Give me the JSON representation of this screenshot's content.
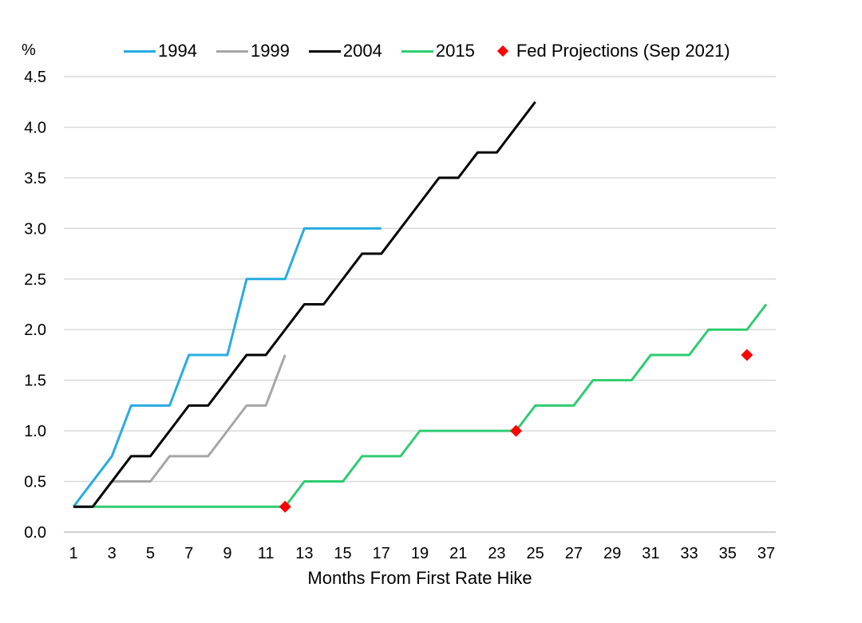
{
  "chart_data": {
    "type": "line",
    "ylabel": "%",
    "xlabel": "Months From First Rate Hike",
    "xlim": [
      1,
      37
    ],
    "ylim": [
      0,
      4.5
    ],
    "x_ticks": [
      1,
      3,
      5,
      7,
      9,
      11,
      13,
      15,
      17,
      19,
      21,
      23,
      25,
      27,
      29,
      31,
      33,
      35,
      37
    ],
    "y_ticks": [
      "0.0",
      "0.5",
      "1.0",
      "1.5",
      "2.0",
      "2.5",
      "3.0",
      "3.5",
      "4.0",
      "4.5"
    ],
    "grid": "horizontal",
    "legend_position": "top",
    "series": [
      {
        "name": "1994",
        "color": "#29abe2",
        "style": "line",
        "x": [
          1,
          2,
          3,
          4,
          5,
          6,
          7,
          8,
          9,
          10,
          11,
          12,
          13,
          14,
          15,
          16,
          17
        ],
        "y": [
          0.25,
          0.5,
          0.75,
          1.25,
          1.25,
          1.25,
          1.75,
          1.75,
          1.75,
          2.5,
          2.5,
          2.5,
          3.0,
          3.0,
          3.0,
          3.0,
          3.0
        ]
      },
      {
        "name": "1999",
        "color": "#a6a6a6",
        "style": "line",
        "x": [
          1,
          2,
          3,
          4,
          5,
          6,
          7,
          8,
          9,
          10,
          11,
          12
        ],
        "y": [
          0.25,
          0.25,
          0.5,
          0.5,
          0.5,
          0.75,
          0.75,
          0.75,
          1.0,
          1.25,
          1.25,
          1.75
        ]
      },
      {
        "name": "2004",
        "color": "#000000",
        "style": "line",
        "x": [
          1,
          2,
          3,
          4,
          5,
          6,
          7,
          8,
          9,
          10,
          11,
          12,
          13,
          14,
          15,
          16,
          17,
          18,
          19,
          20,
          21,
          22,
          23,
          24,
          25
        ],
        "y": [
          0.25,
          0.25,
          0.5,
          0.75,
          0.75,
          1.0,
          1.25,
          1.25,
          1.5,
          1.75,
          1.75,
          2.0,
          2.25,
          2.25,
          2.5,
          2.75,
          2.75,
          3.0,
          3.25,
          3.5,
          3.5,
          3.75,
          3.75,
          4.0,
          4.25
        ]
      },
      {
        "name": "2015",
        "color": "#2ecc71",
        "style": "line",
        "x": [
          1,
          12,
          13,
          14,
          15,
          16,
          17,
          18,
          19,
          20,
          21,
          22,
          23,
          24,
          25,
          26,
          27,
          28,
          29,
          30,
          31,
          32,
          33,
          34,
          35,
          36,
          37
        ],
        "y": [
          0.25,
          0.25,
          0.5,
          0.5,
          0.5,
          0.75,
          0.75,
          0.75,
          1.0,
          1.0,
          1.0,
          1.0,
          1.0,
          1.0,
          1.25,
          1.25,
          1.25,
          1.5,
          1.5,
          1.5,
          1.75,
          1.75,
          1.75,
          2.0,
          2.0,
          2.0,
          2.25
        ]
      },
      {
        "name": "Fed Projections (Sep 2021)",
        "color": "#ff0000",
        "style": "marker",
        "x": [
          12,
          24,
          36
        ],
        "y": [
          0.25,
          1.0,
          1.75
        ]
      }
    ]
  }
}
